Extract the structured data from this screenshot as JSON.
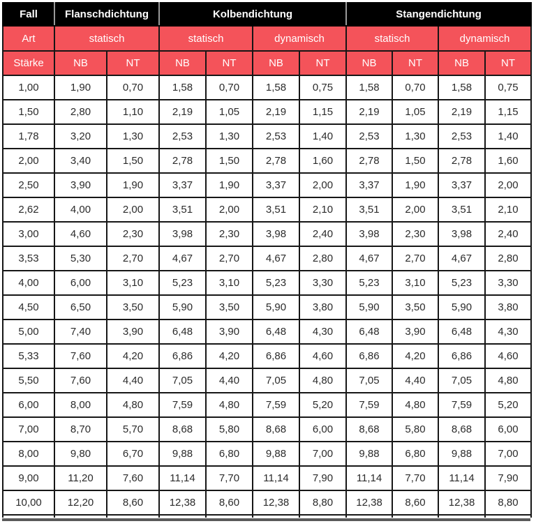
{
  "colors": {
    "accent_red": "#f4535a",
    "header_black": "#000000",
    "header_text": "#ffffff",
    "data_text": "#2b2b2b",
    "grid_border": "#161616",
    "group_separator": "#9a9a9a",
    "cutoff_bar": "#5a5a5a"
  },
  "table": {
    "groups": [
      "Fall",
      "Flanschdichtung",
      "Kolbendichtung",
      "Stangendichtung"
    ],
    "art": [
      "Art",
      "statisch",
      "statisch",
      "dynamisch",
      "statisch",
      "dynamisch"
    ],
    "columns": [
      "Stärke",
      "NB",
      "NT",
      "NB",
      "NT",
      "NB",
      "NT",
      "NB",
      "NT",
      "NB",
      "NT"
    ],
    "rows": [
      [
        "1,00",
        "1,90",
        "0,70",
        "1,58",
        "0,70",
        "1,58",
        "0,75",
        "1,58",
        "0,70",
        "1,58",
        "0,75"
      ],
      [
        "1,50",
        "2,80",
        "1,10",
        "2,19",
        "1,05",
        "2,19",
        "1,15",
        "2,19",
        "1,05",
        "2,19",
        "1,15"
      ],
      [
        "1,78",
        "3,20",
        "1,30",
        "2,53",
        "1,30",
        "2,53",
        "1,40",
        "2,53",
        "1,30",
        "2,53",
        "1,40"
      ],
      [
        "2,00",
        "3,40",
        "1,50",
        "2,78",
        "1,50",
        "2,78",
        "1,60",
        "2,78",
        "1,50",
        "2,78",
        "1,60"
      ],
      [
        "2,50",
        "3,90",
        "1,90",
        "3,37",
        "1,90",
        "3,37",
        "2,00",
        "3,37",
        "1,90",
        "3,37",
        "2,00"
      ],
      [
        "2,62",
        "4,00",
        "2,00",
        "3,51",
        "2,00",
        "3,51",
        "2,10",
        "3,51",
        "2,00",
        "3,51",
        "2,10"
      ],
      [
        "3,00",
        "4,60",
        "2,30",
        "3,98",
        "2,30",
        "3,98",
        "2,40",
        "3,98",
        "2,30",
        "3,98",
        "2,40"
      ],
      [
        "3,53",
        "5,30",
        "2,70",
        "4,67",
        "2,70",
        "4,67",
        "2,80",
        "4,67",
        "2,70",
        "4,67",
        "2,80"
      ],
      [
        "4,00",
        "6,00",
        "3,10",
        "5,23",
        "3,10",
        "5,23",
        "3,30",
        "5,23",
        "3,10",
        "5,23",
        "3,30"
      ],
      [
        "4,50",
        "6,50",
        "3,50",
        "5,90",
        "3,50",
        "5,90",
        "3,80",
        "5,90",
        "3,50",
        "5,90",
        "3,80"
      ],
      [
        "5,00",
        "7,40",
        "3,90",
        "6,48",
        "3,90",
        "6,48",
        "4,30",
        "6,48",
        "3,90",
        "6,48",
        "4,30"
      ],
      [
        "5,33",
        "7,60",
        "4,20",
        "6,86",
        "4,20",
        "6,86",
        "4,60",
        "6,86",
        "4,20",
        "6,86",
        "4,60"
      ],
      [
        "5,50",
        "7,60",
        "4,40",
        "7,05",
        "4,40",
        "7,05",
        "4,80",
        "7,05",
        "4,40",
        "7,05",
        "4,80"
      ],
      [
        "6,00",
        "8,00",
        "4,80",
        "7,59",
        "4,80",
        "7,59",
        "5,20",
        "7,59",
        "4,80",
        "7,59",
        "5,20"
      ],
      [
        "7,00",
        "8,70",
        "5,70",
        "8,68",
        "5,80",
        "8,68",
        "6,00",
        "8,68",
        "5,80",
        "8,68",
        "6,00"
      ],
      [
        "8,00",
        "9,80",
        "6,70",
        "9,88",
        "6,80",
        "9,88",
        "7,00",
        "9,88",
        "6,80",
        "9,88",
        "7,00"
      ],
      [
        "9,00",
        "11,20",
        "7,60",
        "11,14",
        "7,70",
        "11,14",
        "7,90",
        "11,14",
        "7,70",
        "11,14",
        "7,90"
      ],
      [
        "10,00",
        "12,20",
        "8,60",
        "12,38",
        "8,60",
        "12,38",
        "8,80",
        "12,38",
        "8,60",
        "12,38",
        "8,80"
      ]
    ]
  }
}
